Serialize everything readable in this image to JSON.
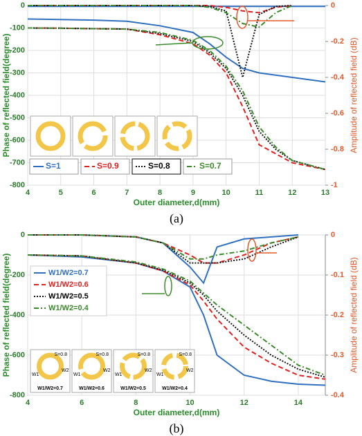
{
  "chart_data": [
    {
      "type": "line",
      "caption": "(a)",
      "x_label": "Outer diameter,d(mm)",
      "y_label": "Phase of reflected field(degree)",
      "y2_label": "Amplitude of reflected field (dB)",
      "x": [
        4,
        5,
        6,
        7,
        8,
        9,
        9.5,
        10,
        10.5,
        11,
        11.5,
        12,
        13
      ],
      "xlim": [
        4,
        13
      ],
      "xticks": [
        4,
        5,
        6,
        7,
        8,
        9,
        10,
        11,
        12,
        13
      ],
      "ylim": [
        -800,
        0
      ],
      "yticks": [
        0,
        -100,
        -200,
        -300,
        -400,
        -500,
        -600,
        -700,
        -800
      ],
      "y2lim": [
        -1,
        0
      ],
      "y2ticks": [
        0,
        -0.2,
        -0.4,
        -0.6,
        -0.8,
        -1
      ],
      "legend": "bottom",
      "grid": true,
      "series": [
        {
          "name": "S=1",
          "color": "#2f6fbf",
          "dash": "solid",
          "values": [
            -60,
            -62,
            -65,
            -70,
            -90,
            -120,
            -170,
            -230,
            -280,
            -300,
            -310,
            -320,
            -340
          ]
        },
        {
          "name": "S=0.9",
          "color": "#e02020",
          "dash": "dashed",
          "values": [
            -100,
            -101,
            -103,
            -105,
            -130,
            -170,
            -220,
            -300,
            -450,
            -620,
            -660,
            -700,
            -730
          ]
        },
        {
          "name": "S=0.8",
          "color": "#111111",
          "dash": "dotted",
          "values": [
            -100,
            -101,
            -103,
            -105,
            -125,
            -160,
            -210,
            -280,
            -400,
            -560,
            -640,
            -690,
            -730
          ]
        },
        {
          "name": "S=0.7",
          "color": "#3a8a2a",
          "dash": "dashdot",
          "values": [
            -100,
            -101,
            -103,
            -105,
            -120,
            -155,
            -200,
            -270,
            -380,
            -540,
            -630,
            -690,
            -730
          ]
        },
        {
          "color": "#2f6fbf",
          "dash": "solid",
          "axis": "y2",
          "values": [
            -0.005,
            -0.005,
            -0.005,
            -0.005,
            -0.005,
            -0.005,
            -0.005,
            -0.005,
            -0.005,
            -0.005,
            -0.005,
            -0.005,
            -0.005
          ]
        },
        {
          "color": "#e02020",
          "dash": "dashed",
          "axis": "y2",
          "values": [
            0,
            0,
            0,
            0,
            0,
            0,
            0,
            -0.01,
            -0.03,
            -0.04,
            -0.01,
            0,
            null
          ]
        },
        {
          "color": "#111111",
          "dash": "dotted",
          "axis": "y2",
          "values": [
            0,
            0,
            0,
            0,
            0,
            0,
            -0.005,
            -0.03,
            -0.4,
            -0.05,
            -0.005,
            0,
            null
          ]
        },
        {
          "color": "#3a8a2a",
          "dash": "dashdot",
          "axis": "y2",
          "values": [
            0,
            0,
            0,
            0,
            0,
            0,
            -0.01,
            -0.04,
            -0.1,
            -0.12,
            -0.04,
            0,
            null
          ]
        }
      ]
    },
    {
      "type": "line",
      "caption": "(b)",
      "x_label": "Outer diameter,d(mm)",
      "y_label": "Phase of reflected field(degree)",
      "y2_label": "Amplitude of reflected field (dB)",
      "x": [
        4,
        6,
        8,
        9,
        10,
        10.5,
        11,
        12,
        13,
        14,
        15
      ],
      "xlim": [
        4,
        15
      ],
      "xticks": [
        4,
        6,
        8,
        10,
        12,
        14
      ],
      "ylim": [
        -800,
        0
      ],
      "yticks": [
        0,
        -200,
        -400,
        -600,
        -800
      ],
      "y2lim": [
        -0.4,
        0
      ],
      "y2ticks": [
        0,
        -0.1,
        -0.2,
        -0.3,
        -0.4
      ],
      "legend": "upper left",
      "grid": true,
      "series": [
        {
          "name": "W1/W2=0.7",
          "color": "#2f6fbf",
          "dash": "solid",
          "values": [
            -100,
            -110,
            -140,
            -180,
            -260,
            -400,
            -600,
            -700,
            -730,
            -745,
            -750
          ]
        },
        {
          "name": "W1/W2=0.6",
          "color": "#e02020",
          "dash": "dashed",
          "values": [
            -100,
            -105,
            -140,
            -180,
            -250,
            -330,
            -420,
            -560,
            -640,
            -700,
            -720
          ]
        },
        {
          "name": "W1/W2=0.5",
          "color": "#111111",
          "dash": "dotted",
          "values": [
            -100,
            -105,
            -140,
            -175,
            -240,
            -300,
            -380,
            -500,
            -600,
            -670,
            -710
          ]
        },
        {
          "name": "W1/W2=0.4",
          "color": "#3a8a2a",
          "dash": "dashdot",
          "values": [
            -100,
            -105,
            -135,
            -170,
            -230,
            -290,
            -350,
            -450,
            -550,
            -650,
            -700
          ]
        },
        {
          "color": "#2f6fbf",
          "dash": "solid",
          "axis": "y2",
          "values": [
            0,
            0,
            -0.005,
            -0.02,
            -0.08,
            -0.12,
            -0.03,
            -0.01,
            -0.005,
            0,
            null
          ]
        },
        {
          "color": "#e02020",
          "dash": "dashed",
          "axis": "y2",
          "values": [
            0,
            0,
            -0.005,
            -0.02,
            -0.05,
            -0.07,
            -0.07,
            -0.05,
            -0.02,
            -0.005,
            null
          ]
        },
        {
          "color": "#111111",
          "dash": "dotted",
          "axis": "y2",
          "values": [
            0,
            0,
            -0.005,
            -0.02,
            -0.07,
            -0.07,
            -0.07,
            -0.06,
            -0.03,
            -0.005,
            null
          ]
        },
        {
          "color": "#3a8a2a",
          "dash": "dashdot",
          "axis": "y2",
          "values": [
            0,
            0,
            -0.005,
            -0.02,
            -0.06,
            -0.06,
            -0.05,
            -0.04,
            -0.02,
            -0.005,
            null
          ]
        }
      ],
      "insets": [
        {
          "caption": "W1/W2=0.7",
          "s": "S=0.8",
          "w1": "W1",
          "w2": "W2"
        },
        {
          "caption": "W1/W2=0.6",
          "s": "S=0.8",
          "w1": "W1",
          "w2": "W2"
        },
        {
          "caption": "W1/W2=0.5",
          "s": "S=0.8",
          "w1": "W1",
          "w2": "W2"
        },
        {
          "caption": "W1/W2=0.4",
          "s": "S=0.8",
          "w1": "W1",
          "w2": "W2"
        }
      ]
    }
  ]
}
